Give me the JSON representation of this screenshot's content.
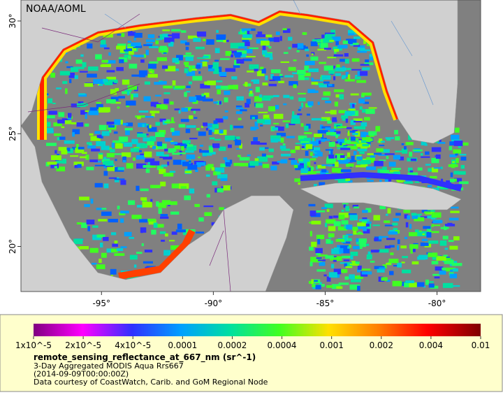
{
  "header": {
    "credit": "NOAA/AOML"
  },
  "map": {
    "xlim": [
      -98.6,
      -78.05
    ],
    "ylim": [
      18,
      30.93
    ],
    "xticks": [
      {
        "value": -95,
        "label": "-95°"
      },
      {
        "value": -90,
        "label": "-90°"
      },
      {
        "value": -85,
        "label": "-85°"
      },
      {
        "value": -80,
        "label": "-80°"
      }
    ],
    "yticks": [
      {
        "value": 20,
        "label": "20°"
      },
      {
        "value": 25,
        "label": "25°"
      },
      {
        "value": 30,
        "label": "30°"
      }
    ]
  },
  "colorbar": {
    "ticks": [
      "1x10^-5",
      "2x10^-5",
      "4x10^-5",
      "0.0001",
      "0.0002",
      "0.0004",
      "0.001",
      "0.002",
      "0.004",
      "0.01"
    ]
  },
  "legend": {
    "variable": "remote_sensing_reflectance_at_667_nm (sr^-1)",
    "lines": [
      "3-Day Aggregated MODIS Aqua Rrs667",
      "(2014-09-09T00:00:00Z)",
      "Data courtesy of CoastWatch, Carib. and GoM Regional Node"
    ]
  }
}
